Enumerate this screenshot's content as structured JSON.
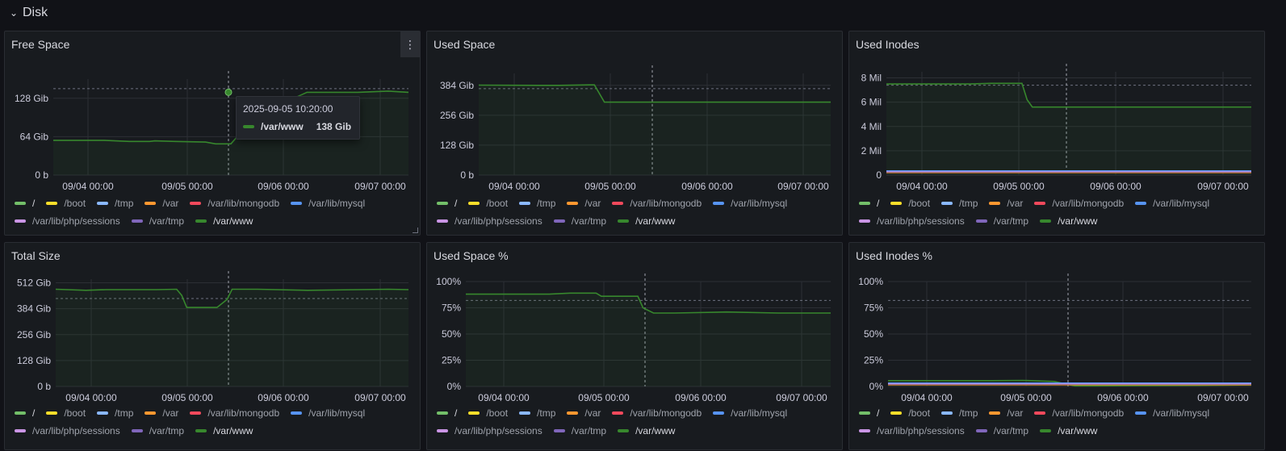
{
  "row": {
    "title": "Disk",
    "chevron": "⌄"
  },
  "legend": [
    {
      "label": "/",
      "color": "#73bf69"
    },
    {
      "label": "/boot",
      "color": "#fade2a"
    },
    {
      "label": "/tmp",
      "color": "#8ab8ff"
    },
    {
      "label": "/var",
      "color": "#ff9830"
    },
    {
      "label": "/var/lib/mongodb",
      "color": "#f2495c"
    },
    {
      "label": "/var/lib/mysql",
      "color": "#5794f2"
    },
    {
      "label": "/var/lib/php/sessions",
      "color": "#ca95e5"
    },
    {
      "label": "/var/tmp",
      "color": "#8066bb"
    },
    {
      "label": "/var/www",
      "color": "#37872d"
    }
  ],
  "x_ticks": [
    "09/04 00:00",
    "09/05 00:00",
    "09/06 00:00",
    "09/07 00:00"
  ],
  "panels": [
    {
      "title": "Free Space",
      "y_ticks": [
        "128 Gib",
        "64 Gib",
        "0 b"
      ]
    },
    {
      "title": "Used Space",
      "y_ticks": [
        "384 Gib",
        "256 Gib",
        "128 Gib",
        "0 b"
      ]
    },
    {
      "title": "Used Inodes",
      "y_ticks": [
        "8 Mil",
        "6 Mil",
        "4 Mil",
        "2 Mil",
        "0"
      ]
    },
    {
      "title": "Total Size",
      "y_ticks": [
        "512 Gib",
        "384 Gib",
        "256 Gib",
        "128 Gib",
        "0 b"
      ]
    },
    {
      "title": "Used Space %",
      "y_ticks": [
        "100%",
        "75%",
        "50%",
        "25%",
        "0%"
      ]
    },
    {
      "title": "Used Inodes %",
      "y_ticks": [
        "100%",
        "75%",
        "50%",
        "25%",
        "0%"
      ]
    }
  ],
  "tooltip": {
    "time": "2025-09-05 10:20:00",
    "series": "/var/www",
    "value": "138 Gib",
    "color": "#37872d"
  },
  "chart_data": [
    {
      "type": "line",
      "title": "Free Space",
      "ylim": [
        0,
        160
      ],
      "series": [
        {
          "name": "/var/www",
          "x": [
            0,
            0.5,
            0.75,
            0.95,
            1.0,
            1.2,
            1.5,
            1.6,
            1.75,
            2.0,
            2.5,
            3.0,
            3.3,
            3.5
          ],
          "y": [
            58,
            58,
            56,
            56,
            57,
            56,
            55,
            52,
            52,
            100,
            138,
            138,
            140,
            138
          ]
        }
      ]
    },
    {
      "type": "line",
      "title": "Used Space",
      "ylim": [
        0,
        435
      ],
      "series": [
        {
          "name": "/var/www",
          "x": [
            0,
            0.6,
            0.8,
            1.1,
            1.15,
            1.25,
            3.5
          ],
          "y": [
            385,
            384,
            384,
            386,
            386,
            312,
            312
          ]
        }
      ]
    },
    {
      "type": "line",
      "title": "Used Inodes",
      "ylim": [
        0,
        8.5
      ],
      "series": [
        {
          "name": "/var/www",
          "x": [
            0,
            0.8,
            1.0,
            1.3,
            1.35,
            1.4,
            3.5
          ],
          "y": [
            7.5,
            7.5,
            7.55,
            7.55,
            6.2,
            5.6,
            5.6
          ]
        }
      ]
    },
    {
      "type": "line",
      "title": "Total Size",
      "ylim": [
        0,
        530
      ],
      "series": [
        {
          "name": "/var/www",
          "x": [
            0,
            0.3,
            0.5,
            1.0,
            1.2,
            1.25,
            1.3,
            1.6,
            1.7,
            1.75,
            2.0,
            2.5,
            3.0,
            3.3,
            3.5
          ],
          "y": [
            480,
            475,
            478,
            478,
            480,
            450,
            390,
            390,
            430,
            480,
            480,
            475,
            478,
            480,
            478
          ]
        }
      ]
    },
    {
      "type": "line",
      "title": "Used Space %",
      "ylim": [
        0,
        100
      ],
      "series": [
        {
          "name": "/var/www",
          "x": [
            0,
            0.8,
            1.0,
            1.25,
            1.3,
            1.65,
            1.7,
            1.8,
            2.0,
            2.5,
            3.0,
            3.5
          ],
          "y": [
            88,
            88,
            89,
            89,
            86,
            86,
            75,
            70,
            70,
            71,
            70,
            70
          ]
        }
      ]
    },
    {
      "type": "line",
      "title": "Used Inodes %",
      "ylim": [
        0,
        100
      ],
      "series": [
        {
          "name": "/var/www",
          "x": [
            0,
            1.0,
            1.3,
            1.6,
            1.8,
            2.0,
            3.0,
            3.5
          ],
          "y": [
            5.5,
            5.5,
            5.8,
            4.8,
            0.5,
            0.5,
            1.0,
            1.5
          ]
        }
      ]
    }
  ]
}
